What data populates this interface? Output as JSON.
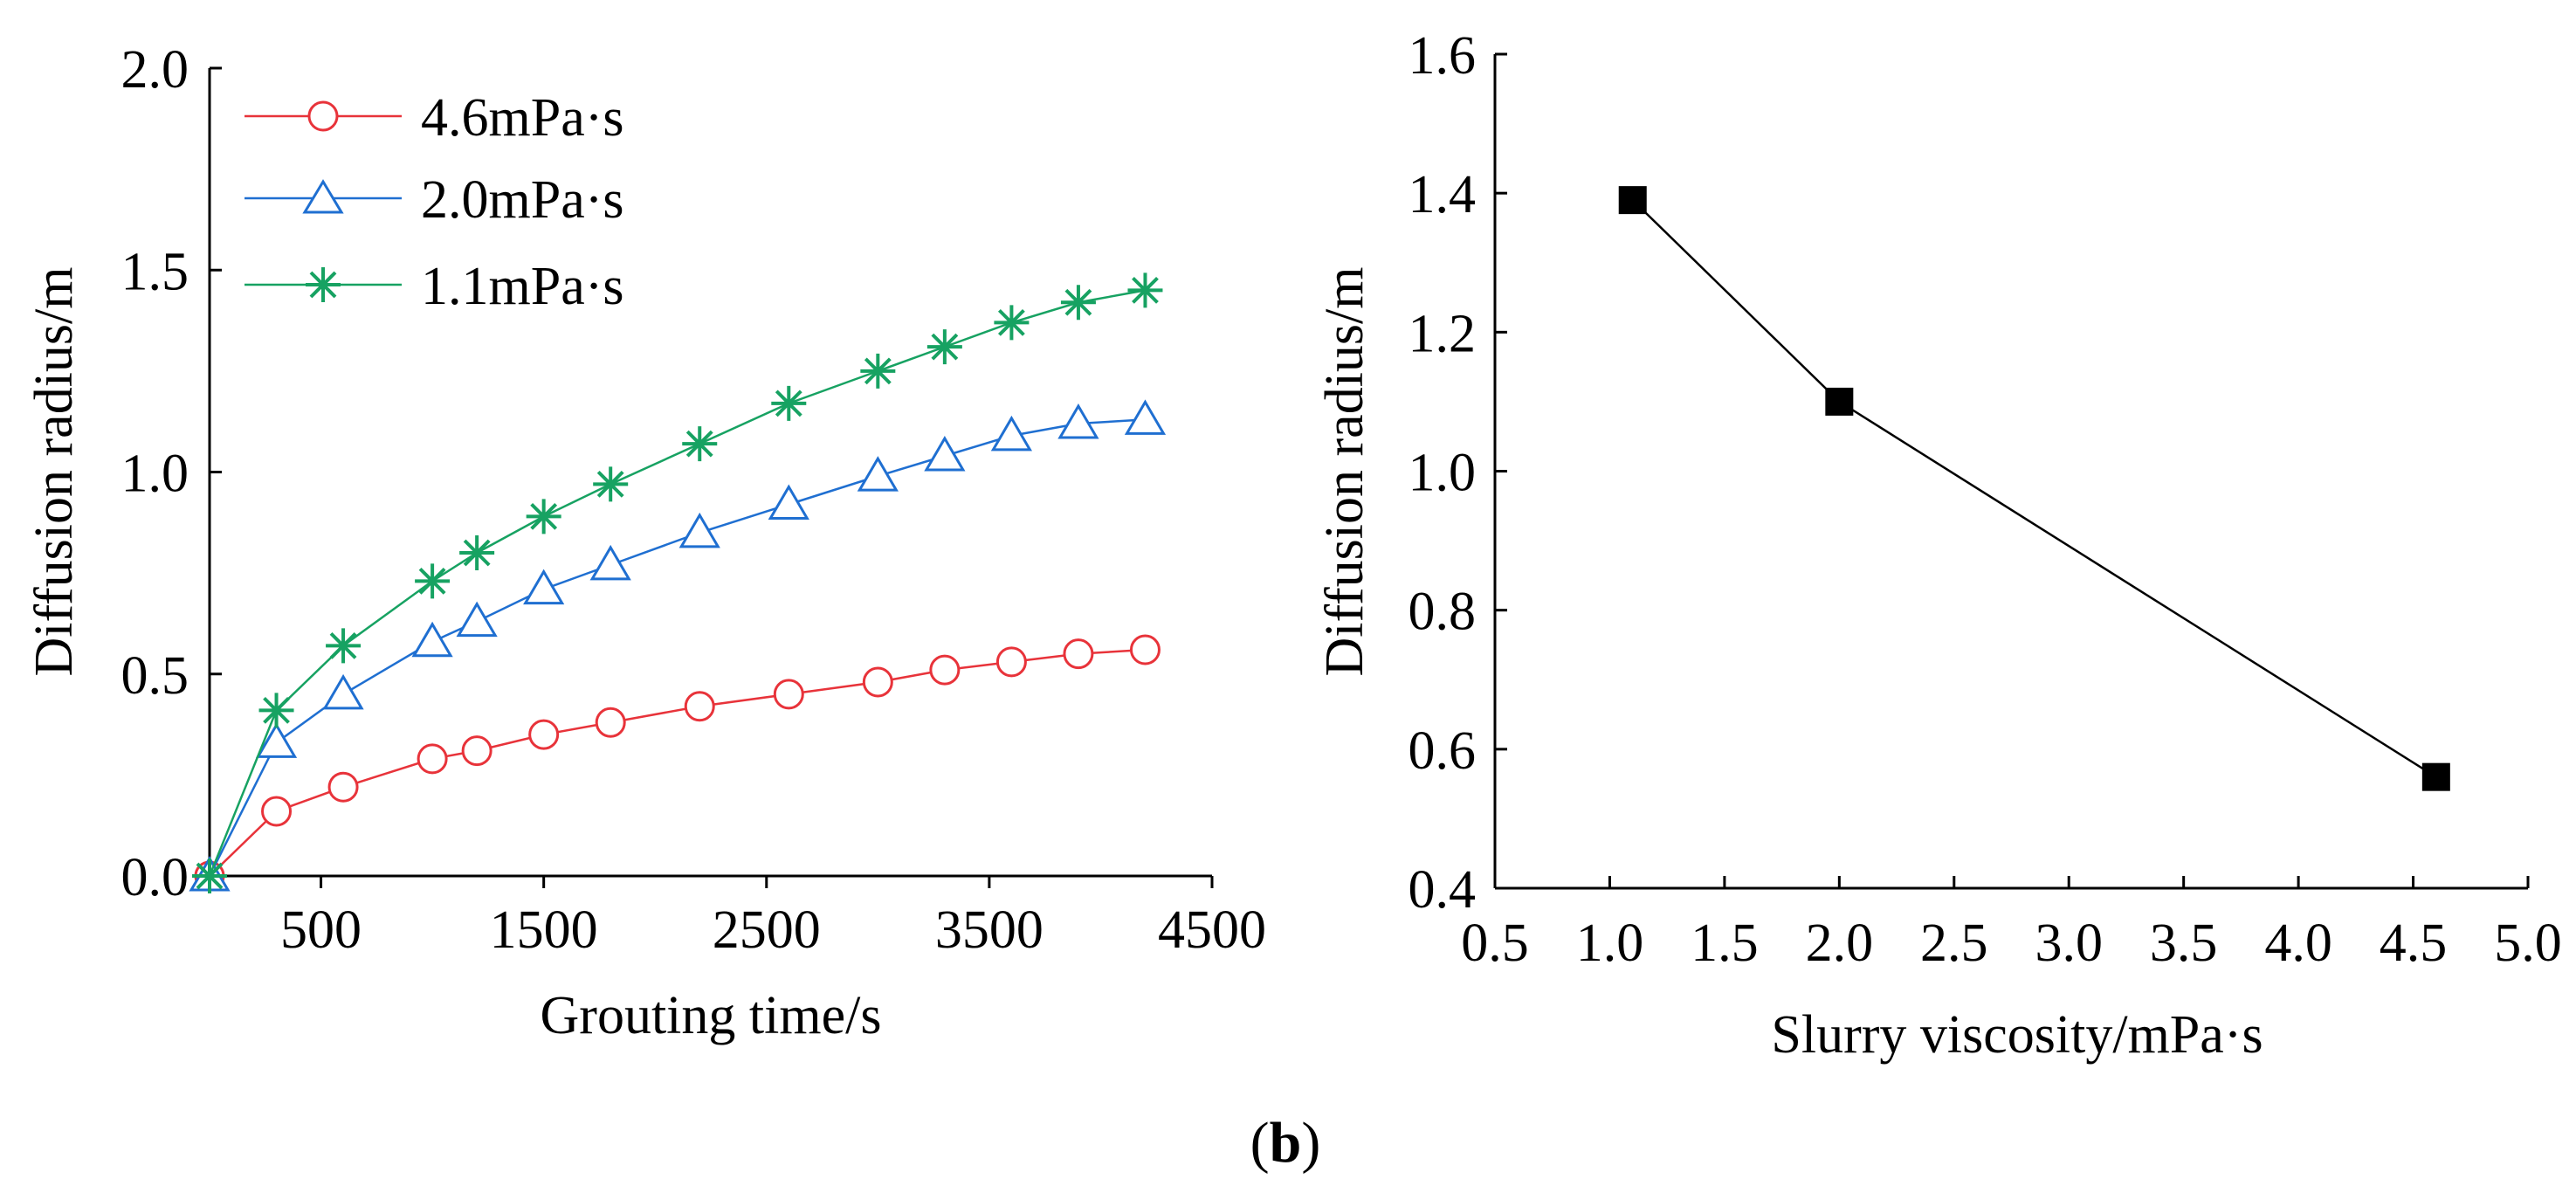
{
  "chart_data": [
    {
      "type": "line",
      "title": "",
      "xlabel": "Grouting time/s",
      "ylabel": "Diffusion radius/m",
      "xlim": [
        0,
        4500
      ],
      "ylim": [
        0,
        2.0
      ],
      "xticks": [
        500,
        1500,
        2500,
        3500,
        4500
      ],
      "xtick_labels": [
        "500",
        "1500",
        "2500",
        "3500",
        "4500"
      ],
      "yticks": [
        0,
        0.5,
        1.0,
        1.5,
        2.0
      ],
      "ytick_labels": [
        "0.0",
        "0.5",
        "1.0",
        "1.5",
        "2.0"
      ],
      "grid": false,
      "legend_position": "top-left",
      "x": [
        0,
        300,
        600,
        1000,
        1200,
        1500,
        1800,
        2200,
        2600,
        3000,
        3300,
        3600,
        3900,
        4200
      ],
      "series": [
        {
          "name": "4.6mPa·s",
          "color": "#e8333a",
          "marker": "circle",
          "values": [
            0,
            0.16,
            0.22,
            0.29,
            0.31,
            0.35,
            0.38,
            0.42,
            0.45,
            0.48,
            0.51,
            0.53,
            0.55,
            0.56
          ]
        },
        {
          "name": "2.0mPa·s",
          "color": "#1f6fd1",
          "marker": "triangle",
          "values": [
            0,
            0.33,
            0.45,
            0.58,
            0.63,
            0.71,
            0.77,
            0.85,
            0.92,
            0.99,
            1.04,
            1.09,
            1.12,
            1.13
          ]
        },
        {
          "name": "1.1mPa·s",
          "color": "#17a262",
          "marker": "asterisk",
          "values": [
            0,
            0.41,
            0.57,
            0.73,
            0.8,
            0.89,
            0.97,
            1.07,
            1.17,
            1.25,
            1.31,
            1.37,
            1.42,
            1.45
          ]
        }
      ]
    },
    {
      "type": "line",
      "title": "",
      "xlabel": "Slurry viscosity/mPa·s",
      "ylabel": "Diffusion radius/m",
      "xlim": [
        0.5,
        5.0
      ],
      "ylim": [
        0.4,
        1.6
      ],
      "xticks": [
        0.5,
        1.0,
        1.5,
        2.0,
        2.5,
        3.0,
        3.5,
        4.0,
        4.5,
        5.0
      ],
      "xtick_labels": [
        "0.5",
        "1.0",
        "1.5",
        "2.0",
        "2.5",
        "3.0",
        "3.5",
        "4.0",
        "4.5",
        "5.0"
      ],
      "yticks": [
        0.4,
        0.6,
        0.8,
        1.0,
        1.2,
        1.4,
        1.6
      ],
      "ytick_labels": [
        "0.4",
        "0.6",
        "0.8",
        "1.0",
        "1.2",
        "1.4",
        "1.6"
      ],
      "grid": false,
      "series": [
        {
          "name": "Diffusion radius",
          "color": "#000000",
          "marker": "square",
          "x": [
            1.1,
            2.0,
            4.6
          ],
          "values": [
            1.39,
            1.1,
            0.56
          ]
        }
      ]
    }
  ],
  "caption": {
    "open": "(",
    "letter": "b",
    "close": ")"
  }
}
